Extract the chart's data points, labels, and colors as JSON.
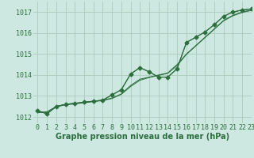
{
  "background_color": "#cce8e0",
  "grid_color": "#aaccbb",
  "line_color": "#2d6e3e",
  "xlabel": "Graphe pression niveau de la mer (hPa)",
  "xlim": [
    -0.5,
    23
  ],
  "ylim": [
    1011.7,
    1017.5
  ],
  "yticks": [
    1012,
    1013,
    1014,
    1015,
    1016,
    1017
  ],
  "xticks": [
    0,
    1,
    2,
    3,
    4,
    5,
    6,
    7,
    8,
    9,
    10,
    11,
    12,
    13,
    14,
    15,
    16,
    17,
    18,
    19,
    20,
    21,
    22,
    23
  ],
  "series_straight1_x": [
    0,
    1,
    2,
    3,
    4,
    5,
    6,
    7,
    8,
    9,
    10,
    11,
    12,
    13,
    14,
    15,
    16,
    17,
    18,
    19,
    20,
    21,
    22,
    23
  ],
  "series_straight1_y": [
    1012.2,
    1012.25,
    1012.5,
    1012.6,
    1012.65,
    1012.7,
    1012.75,
    1012.8,
    1012.9,
    1013.1,
    1013.5,
    1013.8,
    1013.9,
    1014.0,
    1014.1,
    1014.5,
    1015.0,
    1015.4,
    1015.8,
    1016.2,
    1016.6,
    1016.85,
    1017.0,
    1017.1
  ],
  "series_straight2_x": [
    0,
    1,
    2,
    3,
    4,
    5,
    6,
    7,
    8,
    9,
    10,
    11,
    12,
    13,
    14,
    15,
    16,
    17,
    18,
    19,
    20,
    21,
    22,
    23
  ],
  "series_straight2_y": [
    1012.25,
    1012.2,
    1012.48,
    1012.58,
    1012.62,
    1012.68,
    1012.73,
    1012.78,
    1012.88,
    1013.08,
    1013.45,
    1013.75,
    1013.88,
    1013.98,
    1014.08,
    1014.45,
    1014.98,
    1015.38,
    1015.78,
    1016.18,
    1016.58,
    1016.82,
    1016.98,
    1017.08
  ],
  "series_curved_x": [
    0,
    1,
    2,
    3,
    4,
    5,
    6,
    7,
    8,
    9,
    10,
    11,
    12,
    13,
    14,
    15,
    16,
    17,
    18,
    19,
    20,
    21,
    22,
    23
  ],
  "series_curved_y": [
    1012.3,
    1012.15,
    1012.5,
    1012.6,
    1012.65,
    1012.7,
    1012.75,
    1012.8,
    1013.05,
    1013.3,
    1014.05,
    1014.35,
    1014.15,
    1013.9,
    1013.9,
    1014.3,
    1015.55,
    1015.8,
    1016.05,
    1016.4,
    1016.8,
    1017.0,
    1017.1,
    1017.15
  ],
  "series_markers_x": [
    0,
    1,
    2,
    3,
    4,
    5,
    6,
    7,
    8,
    9,
    10,
    11,
    12,
    13,
    14,
    15,
    16,
    17,
    18,
    19,
    20,
    21,
    22,
    23
  ],
  "series_markers_y": [
    1012.3,
    1012.15,
    1012.5,
    1012.6,
    1012.65,
    1012.7,
    1012.75,
    1012.8,
    1013.05,
    1013.3,
    1014.05,
    1014.35,
    1014.15,
    1013.9,
    1013.9,
    1014.3,
    1015.55,
    1015.8,
    1016.05,
    1016.4,
    1016.8,
    1017.0,
    1017.1,
    1017.15
  ],
  "xlabel_fontsize": 7,
  "tick_fontsize": 6,
  "xlabel_color": "#2d6e3e",
  "xlabel_bold": true,
  "fig_width": 3.2,
  "fig_height": 2.0,
  "dpi": 100
}
